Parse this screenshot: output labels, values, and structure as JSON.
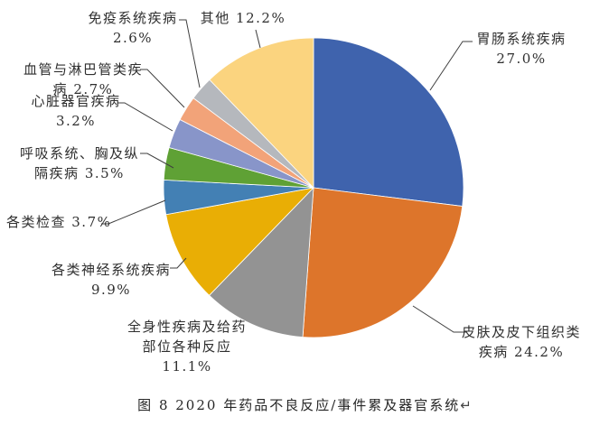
{
  "chart_data": {
    "type": "pie",
    "title": "2020 年药品不良反应/事件累及器官系统",
    "figure_number": "图 8",
    "legend": "none",
    "label_style": "outside-callout",
    "unit": "%",
    "direction": "clockwise",
    "start_position": "12-oclock",
    "categories": [
      "胃肠系统疾病",
      "皮肤及皮下组织类疾病",
      "全身性疾病及给药部位各种反应",
      "各类神经系统疾病",
      "各类检查",
      "呼吸系统、胸及纵隔疾病",
      "心脏器官疾病",
      "血管与淋巴管类疾病",
      "免疫系统疾病",
      "其他"
    ],
    "values": [
      27.0,
      24.2,
      11.1,
      9.9,
      3.7,
      3.5,
      3.2,
      2.7,
      2.6,
      12.2
    ],
    "colors": [
      "#3F63AD",
      "#DD752B",
      "#939393",
      "#E9AE05",
      "#4380B4",
      "#5FA135",
      "#8895C9",
      "#F2A379",
      "#B5B8BD",
      "#FBD47F"
    ],
    "callouts": [
      {
        "lines": [
          "胃肠系统疾病",
          "27.0%"
        ]
      },
      {
        "lines": [
          "皮肤及皮下组织类",
          "疾病 24.2%"
        ]
      },
      {
        "lines": [
          "全身性疾病及给药",
          "部位各种反应",
          "11.1%"
        ]
      },
      {
        "lines": [
          "各类神经系统疾病",
          "9.9%"
        ]
      },
      {
        "lines": [
          "各类检查 3.7%"
        ]
      },
      {
        "lines": [
          "呼吸系统、胸及纵",
          "隔疾病 3.5%"
        ]
      },
      {
        "lines": [
          "心脏器官疾病",
          "3.2%"
        ]
      },
      {
        "lines": [
          "血管与淋巴管类疾",
          "病 2.7%"
        ]
      },
      {
        "lines": [
          "免疫系统疾病",
          "2.6%"
        ]
      },
      {
        "lines": [
          "其他 12.2%"
        ]
      }
    ],
    "leader_line_color": "#3f3f3f"
  },
  "caption": {
    "text": "图 8  2020 年药品不良反应/事件累及器官系统",
    "paragraph_mark": "↵"
  }
}
